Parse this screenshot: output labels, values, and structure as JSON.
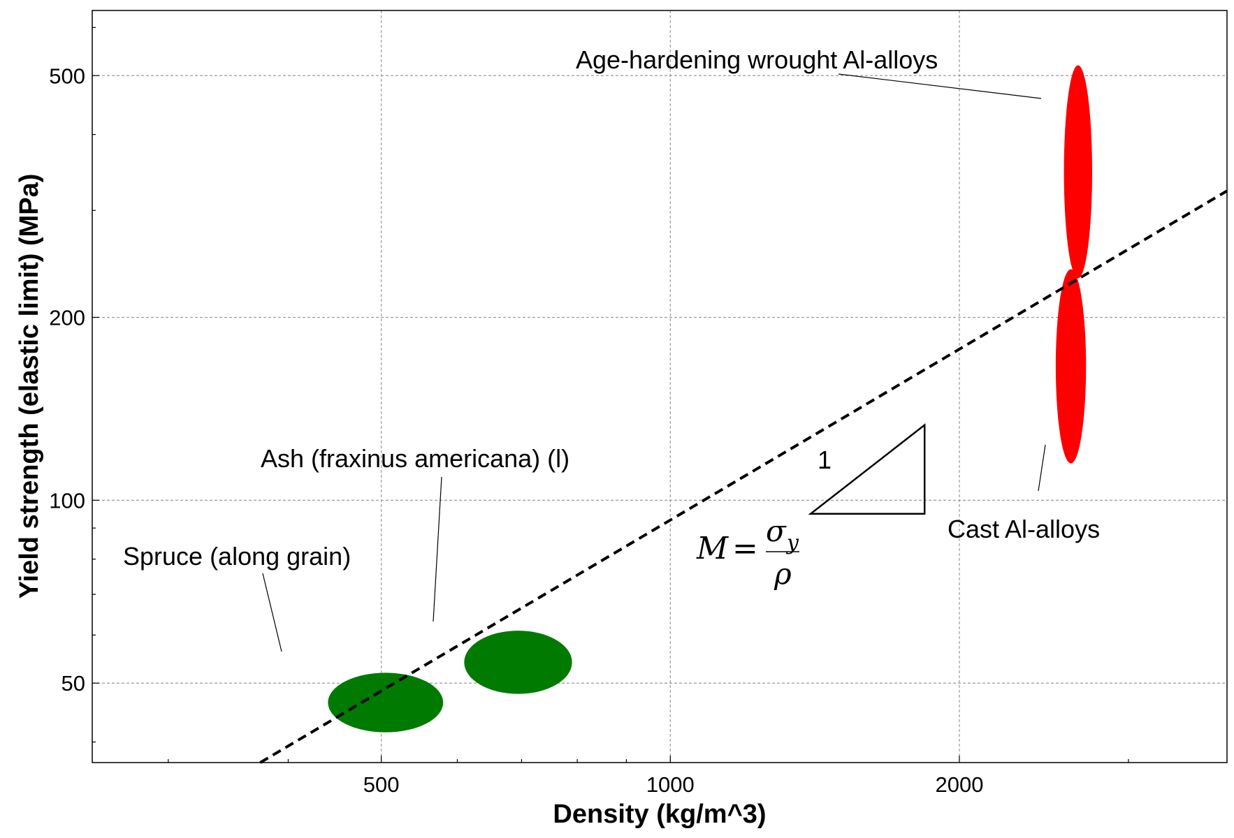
{
  "chart_data": {
    "type": "scatter",
    "title": "",
    "xlabel": "Density (kg/m^3)",
    "ylabel": "Yield strength (elastic limit) (MPa)",
    "xscale": "log",
    "yscale": "log",
    "xlim": [
      250,
      3800
    ],
    "ylim": [
      37,
      640
    ],
    "grid": true,
    "xticks": [
      500,
      1000,
      2000
    ],
    "xtick_labels": [
      "500",
      "1000",
      "2000"
    ],
    "yticks": [
      50,
      100,
      200,
      500
    ],
    "ytick_labels": [
      "50",
      "100",
      "200",
      "500"
    ],
    "materials": [
      {
        "name": "Spruce (along grain)",
        "color": "#007a00",
        "x_range": [
          440,
          580
        ],
        "y_range": [
          41.5,
          52
        ]
      },
      {
        "name": "Ash (fraxinus americana) (l)",
        "color": "#007a00",
        "x_range": [
          610,
          790
        ],
        "y_range": [
          48,
          61
        ]
      },
      {
        "name": "Age-hardening wrought Al-alloys",
        "color": "#ff0000",
        "x_range": [
          2570,
          2750
        ],
        "y_range": [
          232,
          520
        ]
      },
      {
        "name": "Cast Al-alloys",
        "color": "#ff0000",
        "x_range": [
          2520,
          2710
        ],
        "y_range": [
          115,
          240
        ]
      }
    ],
    "guideline": {
      "style": "dashed",
      "points": [
        [
          374,
          37
        ],
        [
          3800,
          323
        ]
      ],
      "triangle_rise_label": "1",
      "triangle": {
        "x": [
          1400,
          1840
        ],
        "y": [
          95,
          133
        ]
      }
    },
    "index_label": {
      "lhs": "M",
      "numerator": "σ",
      "numerator_subscript": "y",
      "denominator": "ρ"
    }
  }
}
